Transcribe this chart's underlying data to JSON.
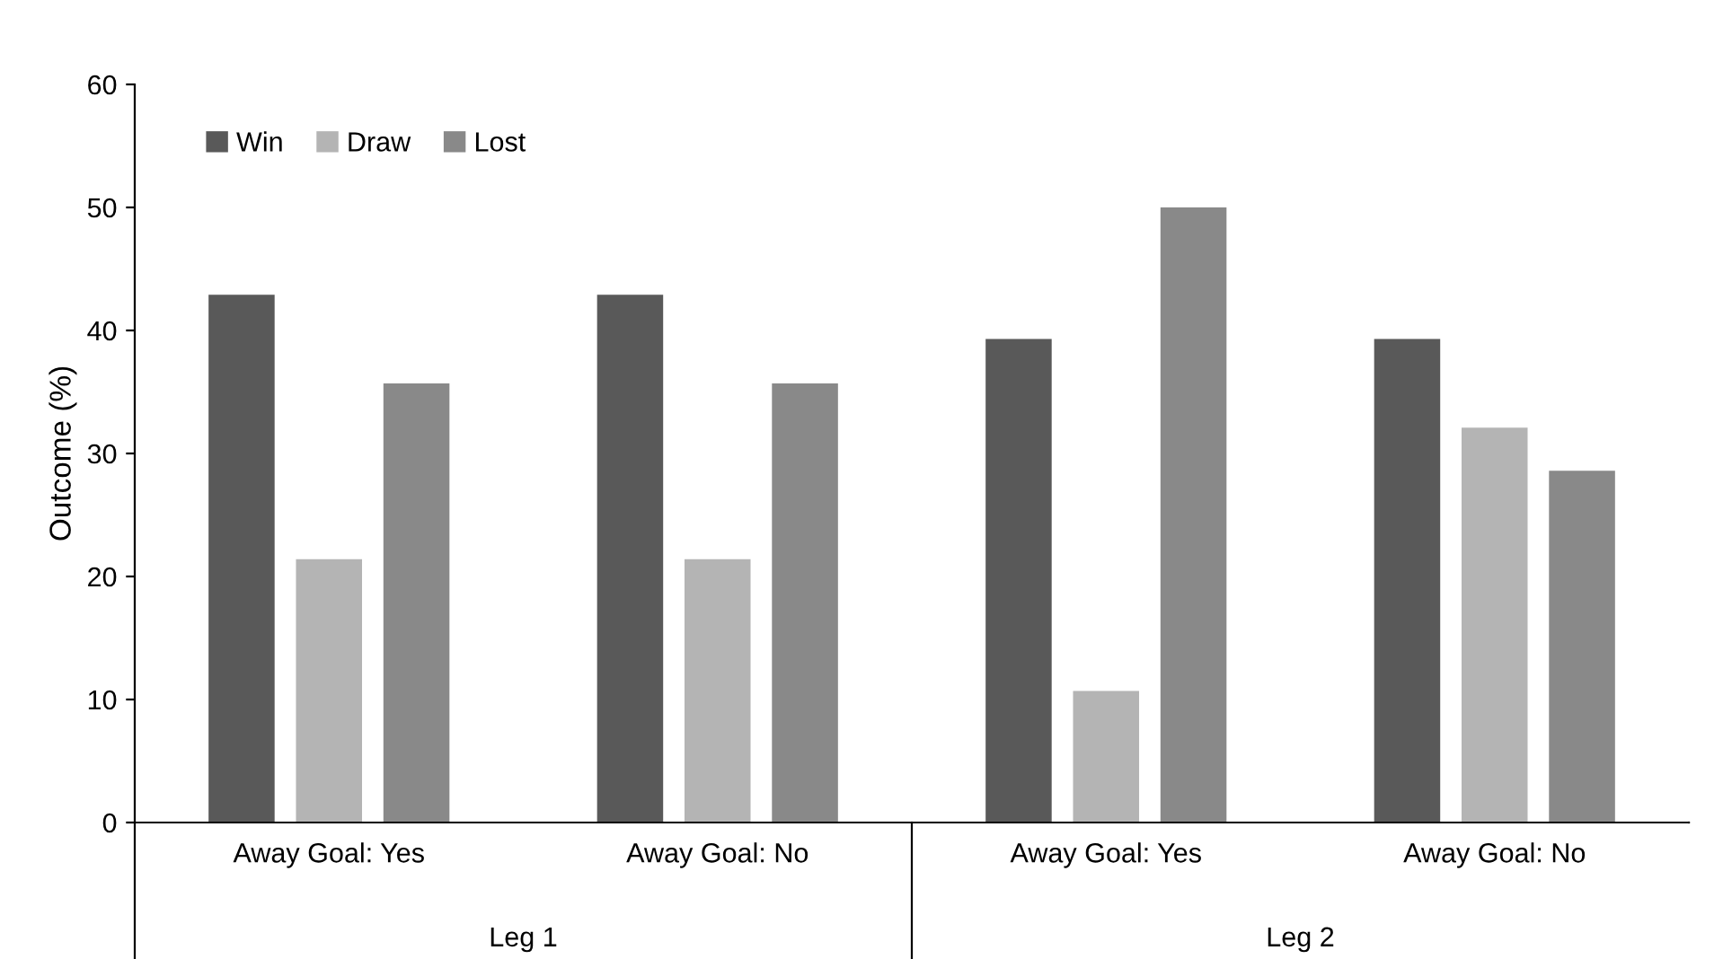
{
  "chart_data": {
    "type": "bar",
    "ylabel": "Outcome (%)",
    "categories": [
      "Away Goal: Yes",
      "Away Goal: No",
      "Away Goal: Yes",
      "Away Goal: No"
    ],
    "series": [
      {
        "name": "Win",
        "color": "#595959",
        "values": [
          42.9,
          42.9,
          39.3,
          39.3
        ]
      },
      {
        "name": "Draw",
        "color": "#b4b4b4",
        "values": [
          21.4,
          21.4,
          10.7,
          32.1
        ]
      },
      {
        "name": "Lost",
        "color": "#898989",
        "values": [
          35.7,
          35.7,
          50.0,
          28.6
        ]
      }
    ],
    "annotations": [
      "Leg 1",
      "Leg 2"
    ],
    "ylim": [
      0,
      60
    ],
    "yticks": [
      0,
      10,
      20,
      30,
      40,
      50,
      60
    ],
    "grid": false,
    "legend": "top left"
  }
}
